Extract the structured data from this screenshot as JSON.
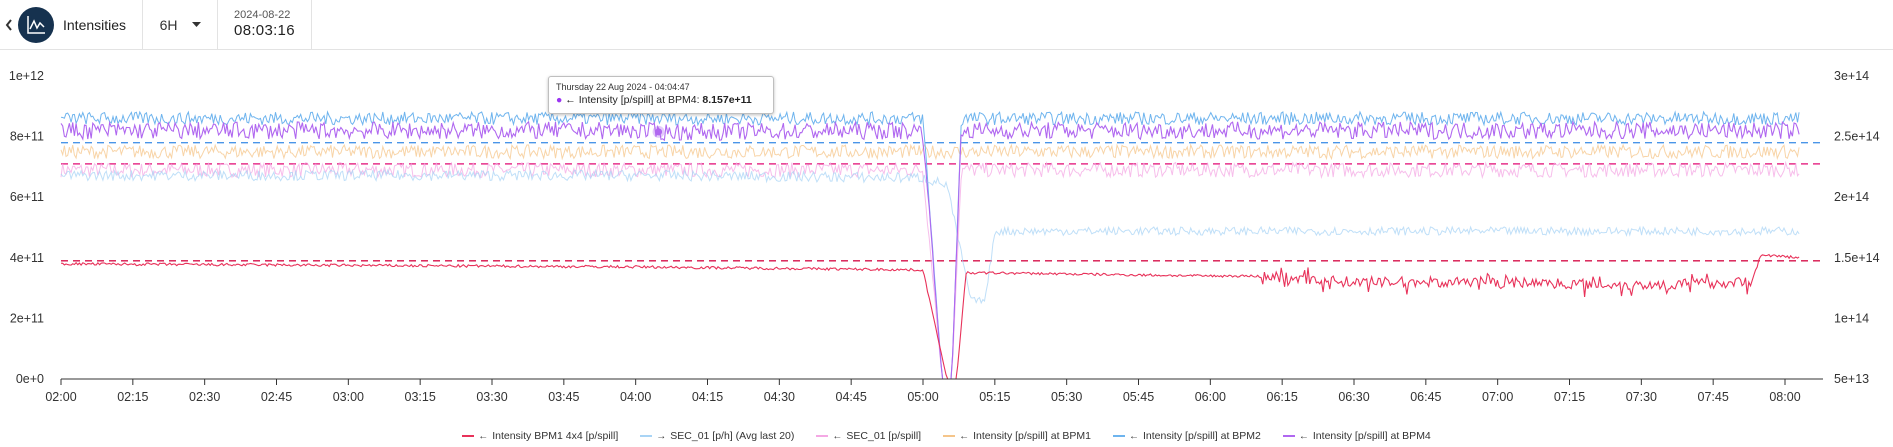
{
  "header": {
    "title": "Intensities",
    "time_range": "6H",
    "date": "2024-08-22",
    "time": "08:03:16"
  },
  "tooltip": {
    "timestamp": "Thursday 22 Aug 2024 - 04:04:47",
    "dot": "●",
    "arrow": "←",
    "series": "Intensity [p/spill] at BPM4:",
    "value": "8.157e+11"
  },
  "colors": {
    "bpm1_4x4": "#e8325a",
    "sec01_avg": "#a9d4f5",
    "sec01": "#f4a8e4",
    "bpm1": "#f5c58a",
    "bpm2": "#6eb4ee",
    "bpm4": "#b067f0",
    "ref_red": "#d6104a",
    "ref_magenta": "#e6308a",
    "ref_blue": "#4a95e8"
  },
  "chart_data": {
    "type": "line",
    "x_ticks": [
      "02:00",
      "02:15",
      "02:30",
      "02:45",
      "03:00",
      "03:15",
      "03:30",
      "03:45",
      "04:00",
      "04:15",
      "04:30",
      "04:45",
      "05:00",
      "05:15",
      "05:30",
      "05:45",
      "06:00",
      "06:15",
      "06:30",
      "06:45",
      "07:00",
      "07:15",
      "07:30",
      "07:45",
      "08:00"
    ],
    "xlim": [
      "02:00",
      "08:03"
    ],
    "y_left": {
      "ticks": [
        "0e+0",
        "2e+11",
        "4e+11",
        "6e+11",
        "8e+11",
        "1e+12"
      ],
      "ylim": [
        0,
        1000000000000.0
      ]
    },
    "y_right": {
      "ticks": [
        "5e+13",
        "1e+14",
        "1.5e+14",
        "2e+14",
        "2.5e+14",
        "3e+14"
      ],
      "ylim": [
        50000000000000.0,
        300000000000000.0
      ]
    },
    "grid": false,
    "legend_position": "bottom",
    "series": [
      {
        "name": "Intensity BPM1 4x4 [p/spill]",
        "arrow": "←",
        "axis": "left",
        "color_key": "bpm1_4x4",
        "x": [
          "02:00",
          "03:00",
          "04:00",
          "05:00",
          "05:05",
          "05:07",
          "05:09",
          "05:15",
          "06:00",
          "06:10",
          "06:30",
          "07:00",
          "07:30",
          "07:53",
          "07:55",
          "08:03"
        ],
        "y": [
          380000000000.0,
          375000000000.0,
          370000000000.0,
          360000000000.0,
          0,
          0,
          350000000000.0,
          350000000000.0,
          340000000000.0,
          340000000000.0,
          320000000000.0,
          320000000000.0,
          310000000000.0,
          320000000000.0,
          410000000000.0,
          400000000000.0
        ]
      },
      {
        "name": "SEC_01 [p/h] (Avg last 20)",
        "arrow": "→",
        "axis": "right",
        "color_key": "sec01_avg",
        "x": [
          "02:00",
          "04:00",
          "05:00",
          "05:05",
          "05:10",
          "05:13",
          "05:15",
          "06:00",
          "07:00",
          "08:03"
        ],
        "y": [
          218000000000000.0,
          218000000000000.0,
          216000000000000.0,
          210000000000000.0,
          115000000000000.0,
          115000000000000.0,
          172000000000000.0,
          172000000000000.0,
          172000000000000.0,
          172000000000000.0
        ]
      },
      {
        "name": "SEC_01 [p/spill]",
        "arrow": "←",
        "axis": "left",
        "color_key": "sec01",
        "x": [
          "02:00",
          "03:00",
          "04:00",
          "05:00",
          "05:04",
          "05:06",
          "05:08",
          "05:10",
          "05:12",
          "06:00",
          "07:00",
          "08:03"
        ],
        "y": [
          690000000000.0,
          690000000000.0,
          690000000000.0,
          690000000000.0,
          0,
          0,
          690000000000.0,
          690000000000.0,
          690000000000.0,
          690000000000.0,
          690000000000.0,
          690000000000.0
        ]
      },
      {
        "name": "Intensity [p/spill] at BPM1",
        "arrow": "←",
        "axis": "left",
        "color_key": "bpm1",
        "x": [
          "02:00",
          "03:00",
          "04:00",
          "05:00",
          "05:15",
          "06:00",
          "07:00",
          "08:03"
        ],
        "y": [
          750000000000.0,
          750000000000.0,
          750000000000.0,
          750000000000.0,
          750000000000.0,
          750000000000.0,
          750000000000.0,
          750000000000.0
        ]
      },
      {
        "name": "Intensity [p/spill] at BPM2",
        "arrow": "←",
        "axis": "left",
        "color_key": "bpm2",
        "x": [
          "02:00",
          "03:00",
          "04:00",
          "05:00",
          "05:04",
          "05:06",
          "05:08",
          "05:10",
          "06:00",
          "07:00",
          "08:03"
        ],
        "y": [
          860000000000.0,
          860000000000.0,
          860000000000.0,
          860000000000.0,
          0,
          0,
          860000000000.0,
          860000000000.0,
          860000000000.0,
          860000000000.0,
          860000000000.0
        ]
      },
      {
        "name": "Intensity [p/spill] at BPM4",
        "arrow": "←",
        "axis": "left",
        "color_key": "bpm4",
        "x": [
          "02:00",
          "03:00",
          "04:00",
          "04:04:47",
          "05:00",
          "05:04",
          "05:06",
          "05:08",
          "05:10",
          "06:00",
          "07:00",
          "08:03"
        ],
        "y": [
          820000000000.0,
          820000000000.0,
          820000000000.0,
          815700000000.0,
          820000000000.0,
          0,
          0,
          820000000000.0,
          820000000000.0,
          820000000000.0,
          820000000000.0,
          820000000000.0
        ]
      }
    ],
    "reference_lines": [
      {
        "axis": "left",
        "y": 390000000000.0,
        "color_key": "ref_red"
      },
      {
        "axis": "left",
        "y": 710000000000.0,
        "color_key": "ref_magenta"
      },
      {
        "axis": "left",
        "y": 780000000000.0,
        "color_key": "ref_blue"
      }
    ],
    "highlight": {
      "series_index": 5,
      "x": "04:04:47",
      "y": 815700000000.0
    }
  }
}
